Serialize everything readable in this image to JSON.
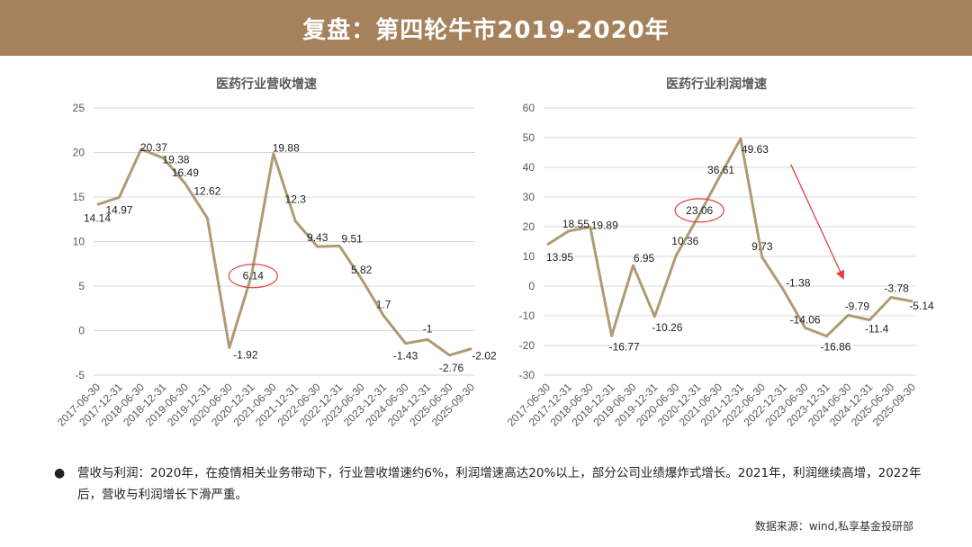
{
  "header": {
    "title": "复盘：第四轮牛市2019-2020年"
  },
  "chart_data": [
    {
      "type": "line",
      "title": "医药行业营收增速",
      "categories": [
        "2017-06-30",
        "2017-12-31",
        "2018-06-30",
        "2018-12-31",
        "2019-06-30",
        "2019-12-31",
        "2020-06-30",
        "2020-12-31",
        "2021-06-30",
        "2021-12-31",
        "2022-06-30",
        "2022-12-31",
        "2023-06-30",
        "2023-12-31",
        "2024-06-30",
        "2024-12-31",
        "2025-06-30",
        "2025-09-30"
      ],
      "series": [
        {
          "values": [
            14.14,
            14.97,
            20.37,
            19.38,
            16.49,
            12.62,
            -1.92,
            6.14,
            19.88,
            12.3,
            9.43,
            9.51,
            5.82,
            1.7,
            -1.43,
            -1,
            -2.76,
            -2.02
          ],
          "labels": [
            "14.14",
            "14.97",
            "20.37",
            "19.38",
            "16.49",
            "12.62",
            "-1.92",
            "6.14",
            "19.88",
            "12.3",
            "9.43",
            "9.51",
            "5.82",
            "1.7",
            "-1.43",
            "-1",
            "-2.76",
            "-2.02"
          ],
          "color": "#b09a74"
        }
      ],
      "ylim": [
        -5,
        25
      ],
      "yticks": [
        -5,
        0,
        5,
        10,
        15,
        20,
        25
      ],
      "grid": true,
      "legend": "none",
      "highlight": {
        "label": "6.14",
        "color": "#e04040"
      }
    },
    {
      "type": "line",
      "title": "医药行业利润增速",
      "categories": [
        "2017-06-30",
        "2017-12-31",
        "2018-06-30",
        "2018-12-31",
        "2019-06-30",
        "2019-12-31",
        "2020-06-30",
        "2020-12-31",
        "2021-06-30",
        "2021-12-31",
        "2022-06-30",
        "2022-12-31",
        "2023-06-30",
        "2023-12-31",
        "2024-06-30",
        "2024-12-31",
        "2025-06-30",
        "2025-09-30"
      ],
      "series": [
        {
          "values": [
            13.95,
            18.55,
            19.89,
            -16.77,
            6.95,
            -10.26,
            10.36,
            23.06,
            36.61,
            49.63,
            9.73,
            -1.38,
            -14.06,
            -16.86,
            -9.79,
            -11.4,
            -3.78,
            -5.14
          ],
          "labels": [
            "13.95",
            "18.55",
            "19.89",
            "-16.77",
            "6.95",
            "-10.26",
            "10.36",
            "23.06",
            "36.61",
            "49.63",
            "9.73",
            "-1.38",
            "-14.06",
            "-16.86",
            "-9.79",
            "-11.4",
            "-3.78",
            "-5.14"
          ],
          "color": "#b09a74"
        }
      ],
      "ylim": [
        -30,
        60
      ],
      "yticks": [
        -30,
        -20,
        -10,
        0,
        10,
        20,
        30,
        40,
        50,
        60
      ],
      "grid": true,
      "legend": "none",
      "highlight": {
        "label": "23.06",
        "color": "#e04040"
      },
      "arrow": {
        "color": "#e04040",
        "direction": "down-right"
      }
    }
  ],
  "note": {
    "bullet": "●",
    "text": "营收与利润：2020年，在疫情相关业务带动下，行业营收增速约6%，利润增速高达20%以上，部分公司业绩爆炸式增长。2021年，利润继续高增，2022年后，营收与利润增长下滑严重。"
  },
  "source": "数据来源：wind,私享基金投研部"
}
